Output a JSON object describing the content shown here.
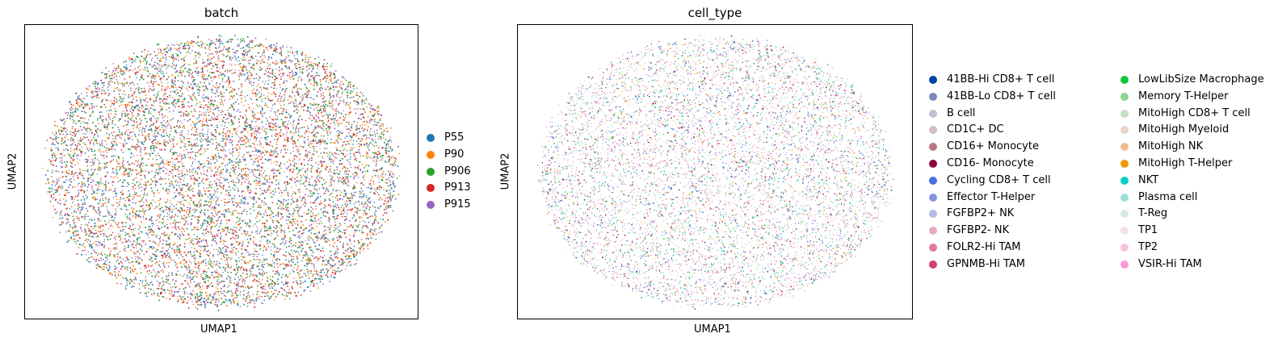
{
  "chart_data": [
    {
      "type": "scatter",
      "title": "batch",
      "xlabel": "UMAP1",
      "ylabel": "UMAP2",
      "grid": false,
      "legend_position": "right",
      "series": [
        {
          "name": "P55",
          "color": "#1f77b4"
        },
        {
          "name": "P90",
          "color": "#ff7f0e"
        },
        {
          "name": "P906",
          "color": "#2ca02c"
        },
        {
          "name": "P913",
          "color": "#d62728"
        },
        {
          "name": "P915",
          "color": "#9467bd"
        }
      ]
    },
    {
      "type": "scatter",
      "title": "cell_type",
      "xlabel": "UMAP1",
      "ylabel": "UMAP2",
      "grid": false,
      "legend_position": "right",
      "series": [
        {
          "name": "41BB-Hi CD8+ T cell",
          "color": "#023fa5"
        },
        {
          "name": "41BB-Lo CD8+ T cell",
          "color": "#7d87b9"
        },
        {
          "name": "B cell",
          "color": "#bec1d4"
        },
        {
          "name": "CD1C+ DC",
          "color": "#d6bcc0"
        },
        {
          "name": "CD16+ Monocyte",
          "color": "#bb7784"
        },
        {
          "name": "CD16- Monocyte",
          "color": "#8e063b"
        },
        {
          "name": "Cycling CD8+ T cell",
          "color": "#4a6fe3"
        },
        {
          "name": "Effector T-Helper",
          "color": "#8595e1"
        },
        {
          "name": "FGFBP2+ NK",
          "color": "#b5bbe3"
        },
        {
          "name": "FGFBP2- NK",
          "color": "#e6afb9"
        },
        {
          "name": "FOLR2-Hi TAM",
          "color": "#e07b91"
        },
        {
          "name": "GPNMB-Hi TAM",
          "color": "#d33f6a"
        },
        {
          "name": "LowLibSize Macrophage",
          "color": "#11c638"
        },
        {
          "name": "Memory T-Helper",
          "color": "#8dd593"
        },
        {
          "name": "MitoHigh CD8+ T cell",
          "color": "#c6dec7"
        },
        {
          "name": "MitoHigh Myeloid",
          "color": "#ead3c6"
        },
        {
          "name": "MitoHigh NK",
          "color": "#f0b98d"
        },
        {
          "name": "MitoHigh T-Helper",
          "color": "#ef9708"
        },
        {
          "name": "NKT",
          "color": "#0fcfc0"
        },
        {
          "name": "Plasma cell",
          "color": "#9cded6"
        },
        {
          "name": "T-Reg",
          "color": "#d5eae7"
        },
        {
          "name": "TP1",
          "color": "#f3e1eb"
        },
        {
          "name": "TP2",
          "color": "#f6c4e1"
        },
        {
          "name": "VSIR-Hi TAM",
          "color": "#f79cd4"
        }
      ]
    }
  ]
}
